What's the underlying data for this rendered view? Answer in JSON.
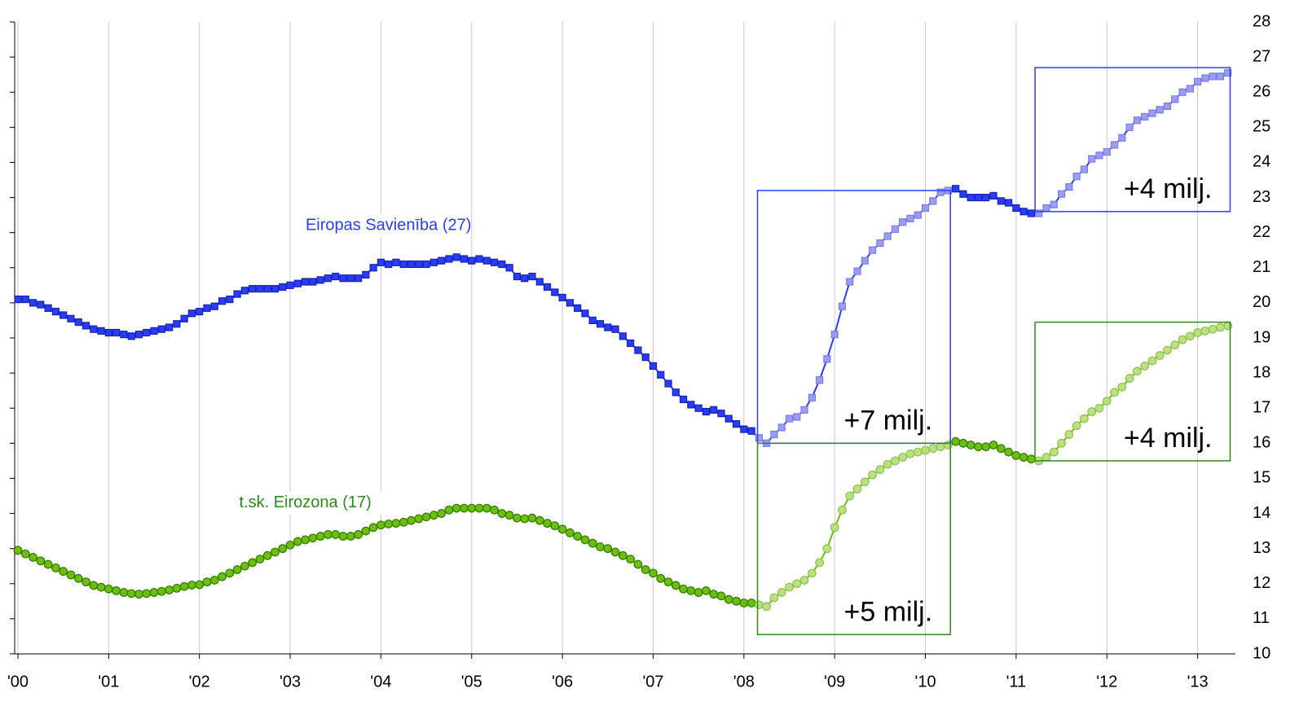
{
  "chart_data": {
    "type": "line",
    "x": [
      0,
      1,
      2,
      3,
      4,
      5,
      6,
      7,
      8,
      9,
      10,
      11,
      12,
      13,
      14,
      15,
      16,
      17,
      18,
      19,
      20,
      21,
      22,
      23,
      24,
      25,
      26,
      27,
      28,
      29,
      30,
      31,
      32,
      33,
      34,
      35,
      36,
      37,
      38,
      39,
      40,
      41,
      42,
      43,
      44,
      45,
      46,
      47,
      48,
      49,
      50,
      51,
      52,
      53,
      54,
      55,
      56,
      57,
      58,
      59,
      60,
      61,
      62,
      63,
      64,
      65,
      66,
      67,
      68,
      69,
      70,
      71,
      72,
      73,
      74,
      75,
      76,
      77,
      78,
      79,
      80,
      81,
      82,
      83,
      84,
      85,
      86,
      87,
      88,
      89,
      90,
      91,
      92,
      93,
      94,
      95,
      96,
      97,
      98,
      99,
      100,
      101,
      102,
      103,
      104,
      105,
      106,
      107,
      108,
      109,
      110,
      111,
      112,
      113,
      114,
      115,
      116,
      117,
      118,
      119,
      120,
      121,
      122,
      123,
      124,
      125,
      126,
      127,
      128,
      129,
      130,
      131,
      132,
      133,
      134,
      135,
      136,
      137,
      138,
      139,
      140,
      141,
      142,
      143,
      144,
      145,
      146,
      147,
      148,
      149,
      150,
      151,
      152,
      153,
      154,
      155,
      156,
      157,
      158,
      159,
      160
    ],
    "series": [
      {
        "name": "Eiropas Savienība (27)",
        "color": "#2a3cff",
        "highlight_color": "#9a9cf6",
        "marker": "square",
        "values": [
          20.1,
          20.1,
          20.0,
          19.95,
          19.85,
          19.75,
          19.65,
          19.55,
          19.45,
          19.35,
          19.25,
          19.2,
          19.15,
          19.15,
          19.1,
          19.05,
          19.1,
          19.15,
          19.2,
          19.25,
          19.3,
          19.4,
          19.55,
          19.7,
          19.75,
          19.85,
          19.9,
          20.05,
          20.1,
          20.25,
          20.35,
          20.4,
          20.4,
          20.4,
          20.4,
          20.45,
          20.5,
          20.55,
          20.6,
          20.6,
          20.65,
          20.7,
          20.75,
          20.7,
          20.7,
          20.7,
          20.8,
          21.0,
          21.15,
          21.1,
          21.15,
          21.1,
          21.1,
          21.1,
          21.1,
          21.15,
          21.2,
          21.25,
          21.3,
          21.25,
          21.2,
          21.25,
          21.2,
          21.15,
          21.1,
          21.0,
          20.75,
          20.7,
          20.75,
          20.6,
          20.45,
          20.3,
          20.15,
          20.0,
          19.85,
          19.7,
          19.5,
          19.4,
          19.3,
          19.25,
          19.05,
          18.85,
          18.65,
          18.45,
          18.2,
          17.95,
          17.7,
          17.45,
          17.25,
          17.1,
          17.0,
          16.9,
          16.95,
          16.85,
          16.7,
          16.55,
          16.4,
          16.35,
          16.15,
          16.0,
          16.25,
          16.45,
          16.7,
          16.75,
          16.95,
          17.3,
          17.8,
          18.4,
          19.1,
          19.9,
          20.6,
          20.9,
          21.2,
          21.5,
          21.7,
          21.9,
          22.1,
          22.3,
          22.4,
          22.5,
          22.7,
          22.9,
          23.15,
          23.2,
          23.25,
          23.1,
          23.0,
          23.0,
          23.0,
          23.05,
          22.9,
          22.85,
          22.7,
          22.6,
          22.55,
          22.55,
          22.7,
          22.8,
          23.1,
          23.3,
          23.6,
          23.8,
          24.1,
          24.2,
          24.3,
          24.5,
          24.7,
          25.0,
          25.2,
          25.3,
          25.4,
          25.5,
          25.6,
          25.8,
          26.0,
          26.1,
          26.3,
          26.4,
          26.45,
          26.45,
          26.55
        ]
      },
      {
        "name": "t.sk. Eirozona (17)",
        "color": "#6cc00a",
        "highlight_color": "#b9e27c",
        "marker": "circle",
        "values": [
          12.95,
          12.85,
          12.75,
          12.65,
          12.55,
          12.45,
          12.35,
          12.25,
          12.15,
          12.05,
          11.95,
          11.9,
          11.85,
          11.8,
          11.75,
          11.72,
          11.7,
          11.72,
          11.75,
          11.78,
          11.82,
          11.87,
          11.92,
          11.96,
          11.97,
          12.05,
          12.1,
          12.2,
          12.3,
          12.4,
          12.5,
          12.6,
          12.7,
          12.8,
          12.9,
          13.0,
          13.1,
          13.2,
          13.25,
          13.3,
          13.35,
          13.4,
          13.4,
          13.35,
          13.35,
          13.4,
          13.5,
          13.6,
          13.67,
          13.7,
          13.72,
          13.75,
          13.8,
          13.85,
          13.9,
          13.95,
          14.0,
          14.1,
          14.15,
          14.15,
          14.15,
          14.15,
          14.15,
          14.1,
          14.0,
          13.95,
          13.87,
          13.85,
          13.87,
          13.8,
          13.72,
          13.65,
          13.55,
          13.45,
          13.35,
          13.25,
          13.15,
          13.05,
          13.0,
          12.9,
          12.8,
          12.7,
          12.55,
          12.4,
          12.3,
          12.15,
          12.05,
          11.95,
          11.85,
          11.8,
          11.75,
          11.8,
          11.7,
          11.65,
          11.55,
          11.5,
          11.45,
          11.45,
          11.4,
          11.35,
          11.6,
          11.75,
          11.9,
          12.0,
          12.1,
          12.3,
          12.6,
          13.0,
          13.6,
          14.1,
          14.5,
          14.7,
          14.9,
          15.1,
          15.25,
          15.4,
          15.5,
          15.6,
          15.7,
          15.75,
          15.8,
          15.85,
          15.9,
          15.95,
          16.05,
          16.0,
          15.95,
          15.9,
          15.9,
          15.95,
          15.85,
          15.75,
          15.65,
          15.6,
          15.55,
          15.5,
          15.6,
          15.75,
          16.0,
          16.25,
          16.5,
          16.7,
          16.9,
          17.0,
          17.2,
          17.45,
          17.6,
          17.85,
          18.05,
          18.2,
          18.35,
          18.5,
          18.65,
          18.8,
          18.95,
          19.05,
          19.15,
          19.2,
          19.25,
          19.3,
          19.35
        ]
      }
    ],
    "xlim": [
      0,
      161
    ],
    "xticks": [
      {
        "value": 0,
        "label": "'00"
      },
      {
        "value": 12,
        "label": "'01"
      },
      {
        "value": 24,
        "label": "'02"
      },
      {
        "value": 36,
        "label": "'03"
      },
      {
        "value": 48,
        "label": "'04"
      },
      {
        "value": 60,
        "label": "'05"
      },
      {
        "value": 72,
        "label": "'06"
      },
      {
        "value": 84,
        "label": "'07"
      },
      {
        "value": 96,
        "label": "'08"
      },
      {
        "value": 108,
        "label": "'09"
      },
      {
        "value": 120,
        "label": "'10"
      },
      {
        "value": 132,
        "label": "'11"
      },
      {
        "value": 144,
        "label": "'12"
      },
      {
        "value": 156,
        "label": "'13"
      }
    ],
    "ylim": [
      10,
      28
    ],
    "yticks": [
      10,
      11,
      12,
      13,
      14,
      15,
      16,
      17,
      18,
      19,
      20,
      21,
      22,
      23,
      24,
      25,
      26,
      27,
      28
    ],
    "y_axis_side": "right",
    "grid": "x",
    "annotations": [
      {
        "text": "+7 milj.",
        "color": "#2a3cff",
        "x": [
          97.8,
          123.3
        ],
        "y": [
          16.0,
          23.2
        ]
      },
      {
        "text": "+4 milj.",
        "color": "#2a3cff",
        "x": [
          134.5,
          160.3
        ],
        "y": [
          22.6,
          26.7
        ]
      },
      {
        "text": "+5 milj.",
        "color": "#2e8b1a",
        "x": [
          97.8,
          123.3
        ],
        "y": [
          10.55,
          16.0
        ]
      },
      {
        "text": "+4 milj.",
        "color": "#2e8b1a",
        "x": [
          134.5,
          160.3
        ],
        "y": [
          15.5,
          19.45
        ]
      }
    ]
  }
}
